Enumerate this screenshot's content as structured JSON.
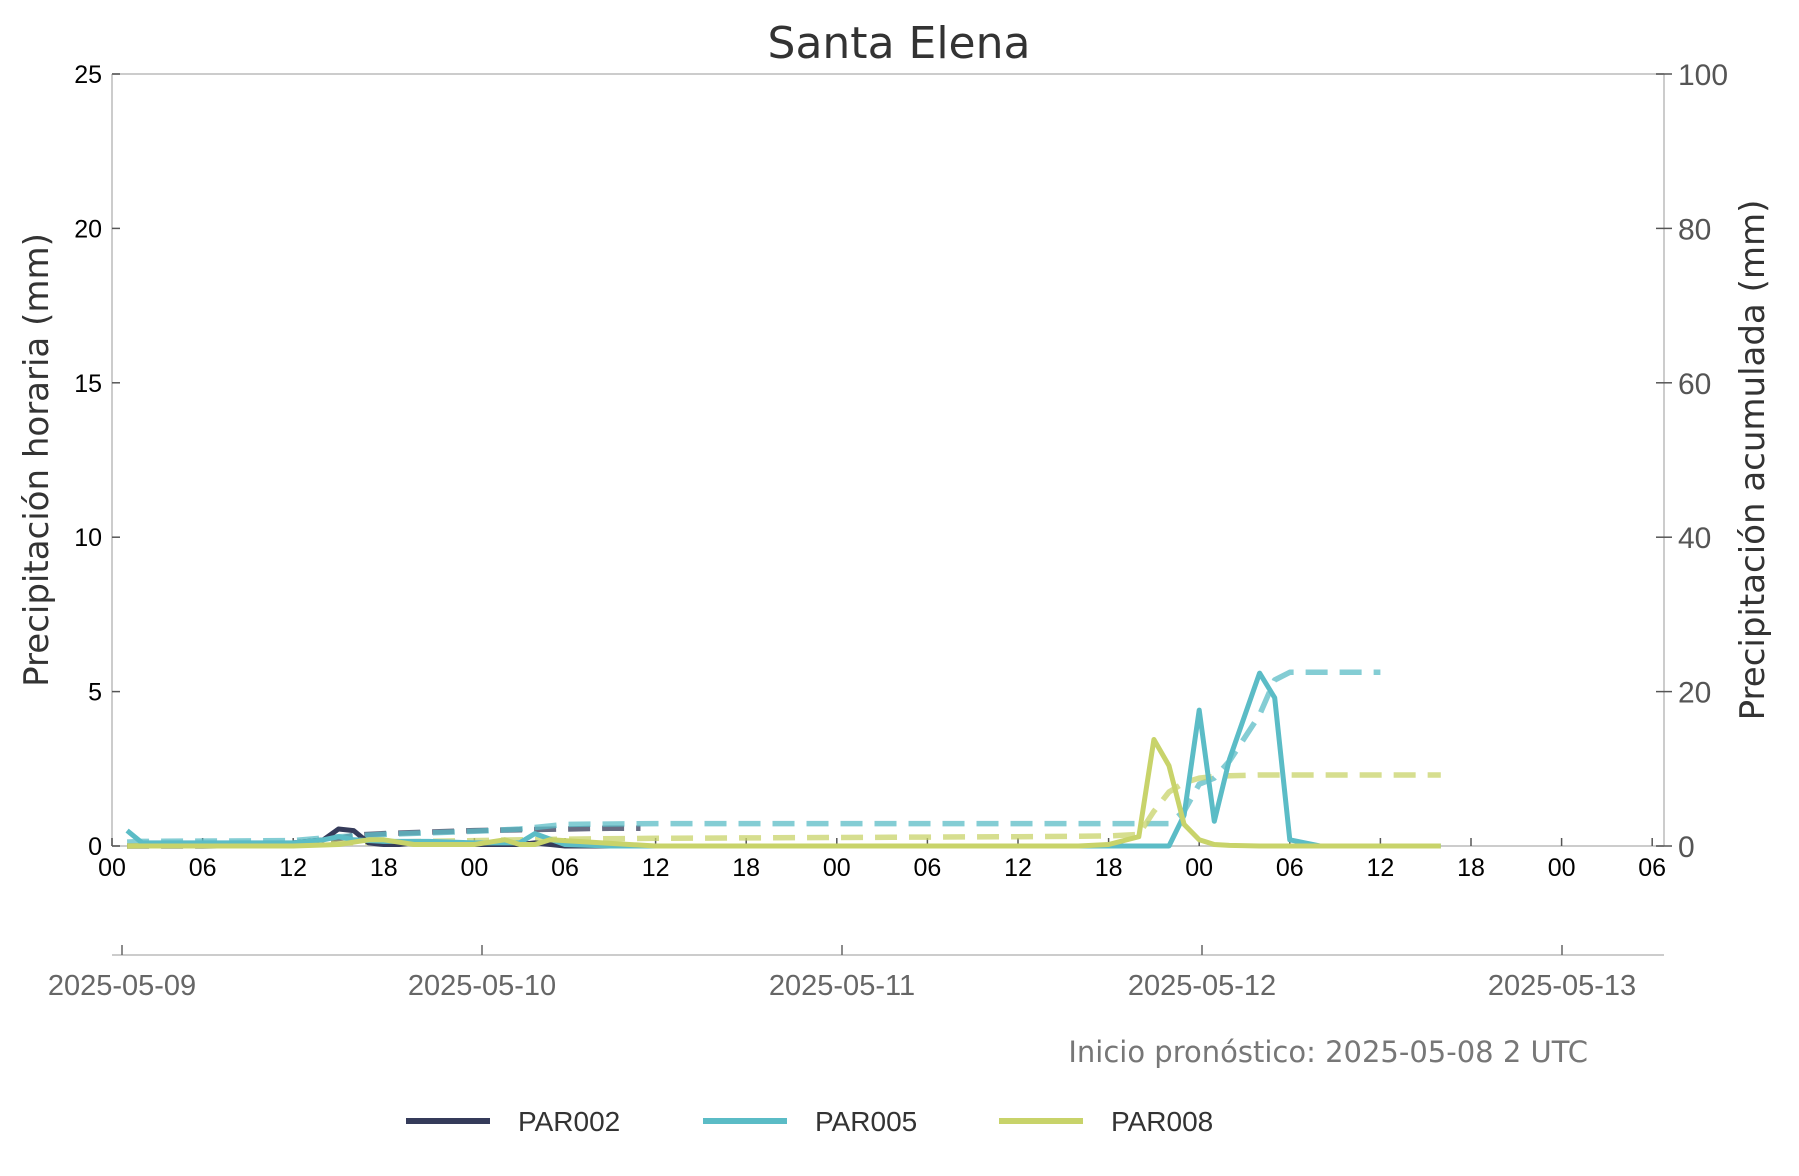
{
  "chart_data": {
    "type": "line",
    "title": "Santa Elena",
    "ylabel_left": "Precipitación horaria (mm)",
    "ylabel_right": "Precipitación acumulada (mm)",
    "ylim_left": [
      0,
      25
    ],
    "ylim_right": [
      0,
      100
    ],
    "yticks_left": [
      "0",
      "5",
      "10",
      "15",
      "20",
      "25"
    ],
    "yticks_right": [
      "0",
      "20",
      "40",
      "60",
      "80",
      "100"
    ],
    "x_hour_ticks": [
      "00",
      "06",
      "12",
      "18",
      "00",
      "06",
      "12",
      "18",
      "00",
      "06",
      "12",
      "18",
      "00",
      "06",
      "12",
      "18",
      "00",
      "06"
    ],
    "x_date_ticks": [
      "2025-05-09",
      "2025-05-10",
      "2025-05-11",
      "2025-05-12",
      "2025-05-13"
    ],
    "grid": false,
    "legend_position": "bottom",
    "annotation": "Inicio pronóstico: 2025-05-08 2 UTC",
    "x_unit": "hours since 2025-05-09 00 UTC",
    "series": [
      {
        "name": "PAR002",
        "color": "#353b5a",
        "hourly_mm": {
          "x": [
            1,
            3,
            6,
            9,
            12,
            14,
            15,
            16,
            17,
            18,
            19,
            20,
            21,
            22,
            24,
            27,
            28,
            30,
            33
          ],
          "y": [
            0.0,
            0.0,
            0.0,
            0.0,
            0.1,
            0.2,
            0.55,
            0.5,
            0.1,
            0.05,
            0.05,
            0.1,
            0.1,
            0.05,
            0.05,
            0.05,
            0.1,
            0.0,
            0.0
          ]
        },
        "accumulated_mm": {
          "x": [
            1,
            6,
            12,
            14,
            16,
            18,
            21,
            24,
            27,
            30,
            33,
            35
          ],
          "y": [
            0.0,
            0.0,
            0.2,
            0.5,
            1.4,
            1.6,
            1.8,
            2.0,
            2.1,
            2.2,
            2.3,
            2.3
          ]
        }
      },
      {
        "name": "PAR005",
        "color": "#5bbcc6",
        "hourly_mm": {
          "x": [
            1,
            2,
            4,
            8,
            12,
            14,
            15,
            16,
            18,
            21,
            24,
            27,
            28,
            30,
            33,
            48,
            70,
            71,
            72,
            73,
            74,
            76,
            77,
            78,
            80,
            84,
            88
          ],
          "y": [
            0.5,
            0.1,
            0.1,
            0.1,
            0.1,
            0.2,
            0.3,
            0.2,
            0.15,
            0.15,
            0.1,
            0.1,
            0.4,
            0.05,
            0.0,
            0.0,
            0.0,
            1.0,
            4.4,
            0.8,
            2.8,
            5.6,
            4.8,
            0.2,
            0.0,
            0.0,
            0.0
          ]
        },
        "accumulated_mm": {
          "x": [
            1,
            2,
            12,
            15,
            18,
            24,
            27,
            30,
            36,
            48,
            60,
            70,
            71,
            72,
            73,
            74,
            76,
            77,
            78,
            80,
            84
          ],
          "y": [
            0.5,
            0.6,
            0.7,
            1.2,
            1.5,
            1.9,
            2.2,
            2.8,
            2.9,
            2.9,
            2.9,
            2.9,
            4.5,
            8.0,
            8.8,
            11.0,
            17.0,
            21.5,
            22.5,
            22.5,
            22.5
          ]
        }
      },
      {
        "name": "PAR008",
        "color": "#c8d36a",
        "hourly_mm": {
          "x": [
            1,
            6,
            12,
            15,
            17,
            18,
            20,
            24,
            26,
            27,
            28,
            29,
            36,
            48,
            64,
            66,
            68,
            69,
            70,
            71,
            72,
            73,
            74,
            76,
            80,
            88
          ],
          "y": [
            0.0,
            0.0,
            0.0,
            0.05,
            0.2,
            0.2,
            0.05,
            0.05,
            0.2,
            0.05,
            0.05,
            0.2,
            0.0,
            0.0,
            0.0,
            0.05,
            0.3,
            3.45,
            2.6,
            0.7,
            0.2,
            0.05,
            0.02,
            0.0,
            0.0,
            0.0
          ]
        },
        "accumulated_mm": {
          "x": [
            1,
            12,
            18,
            24,
            30,
            36,
            48,
            60,
            66,
            68,
            69,
            70,
            71,
            72,
            73,
            74,
            76,
            80,
            88
          ],
          "y": [
            0.0,
            0.2,
            0.5,
            0.7,
            0.9,
            1.0,
            1.1,
            1.2,
            1.3,
            1.5,
            4.5,
            7.0,
            8.2,
            8.8,
            9.0,
            9.1,
            9.2,
            9.2,
            9.2
          ]
        }
      }
    ]
  }
}
